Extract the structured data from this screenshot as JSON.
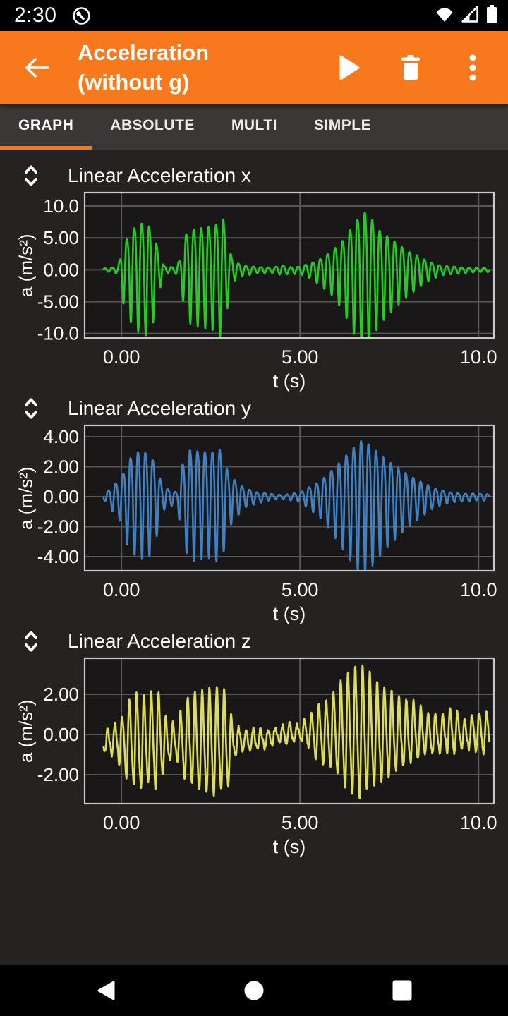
{
  "status_bar": {
    "time": "2:30"
  },
  "app_bar": {
    "title_line1": "Acceleration",
    "title_line2": "(without g)"
  },
  "tabs": {
    "items": [
      {
        "label": "GRAPH",
        "active": true
      },
      {
        "label": "ABSOLUTE",
        "active": false
      },
      {
        "label": "MULTI",
        "active": false
      },
      {
        "label": "SIMPLE",
        "active": false
      }
    ]
  },
  "colors": {
    "accent": "#F8791B",
    "plot_bg": "#191717",
    "grid": "#565656",
    "frame": "#C8C8C8",
    "text": "#FFFFFF"
  },
  "chart_data": [
    {
      "type": "line",
      "title": "Linear Acceleration x",
      "color": "#22CE22",
      "xlabel": "t (s)",
      "ylabel": "a (m/s²)",
      "xlim": [
        -1.03,
        10.43
      ],
      "ylim": [
        -10.7,
        12.1
      ],
      "x_ticks": [
        {
          "value": 0,
          "label": "0.00"
        },
        {
          "value": 5,
          "label": "5.00"
        },
        {
          "value": 10,
          "label": "10.0"
        }
      ],
      "y_ticks": [
        {
          "value": 10,
          "label": "10.0"
        },
        {
          "value": 5,
          "label": "5.00"
        },
        {
          "value": 0,
          "label": "0.00"
        },
        {
          "value": -5,
          "label": "-5.00"
        },
        {
          "value": -10,
          "label": "-10.0"
        }
      ],
      "grid": true,
      "legend": "none",
      "waveform": {
        "t_start": -0.5,
        "t_end": 10.3,
        "dt": 0.01,
        "freq": 4.8,
        "phase": 3.1416,
        "noise": 0.14,
        "seed": 3,
        "envelope": [
          [
            -0.5,
            0.2
          ],
          [
            -0.1,
            0.5
          ],
          [
            0.05,
            4.5
          ],
          [
            0.3,
            7.5
          ],
          [
            0.5,
            8.5
          ],
          [
            0.7,
            8.8
          ],
          [
            0.9,
            7.0
          ],
          [
            1.05,
            3.0
          ],
          [
            1.2,
            0.6
          ],
          [
            1.5,
            0.4
          ],
          [
            1.65,
            2.0
          ],
          [
            1.8,
            6.5
          ],
          [
            2.0,
            7.5
          ],
          [
            2.3,
            7.8
          ],
          [
            2.6,
            8.2
          ],
          [
            2.85,
            9.5
          ],
          [
            3.0,
            4.0
          ],
          [
            3.15,
            1.5
          ],
          [
            3.4,
            0.8
          ],
          [
            3.8,
            0.5
          ],
          [
            4.2,
            0.4
          ],
          [
            4.5,
            0.8
          ],
          [
            4.7,
            0.5
          ],
          [
            5.0,
            0.6
          ],
          [
            5.3,
            1.2
          ],
          [
            5.6,
            2.2
          ],
          [
            5.9,
            3.5
          ],
          [
            6.2,
            5.5
          ],
          [
            6.5,
            8.5
          ],
          [
            6.8,
            10.8
          ],
          [
            7.0,
            9.5
          ],
          [
            7.2,
            7.5
          ],
          [
            7.5,
            6.0
          ],
          [
            7.8,
            4.5
          ],
          [
            8.1,
            3.2
          ],
          [
            8.4,
            2.2
          ],
          [
            8.7,
            1.2
          ],
          [
            9.0,
            0.7
          ],
          [
            9.4,
            0.5
          ],
          [
            9.8,
            0.35
          ],
          [
            10.3,
            0.3
          ]
        ],
        "bias": [
          [
            -0.5,
            0
          ],
          [
            10.3,
            0
          ]
        ]
      }
    },
    {
      "type": "line",
      "title": "Linear Acceleration y",
      "color": "#3E82C6",
      "xlabel": "t (s)",
      "ylabel": "a (m/s²)",
      "xlim": [
        -1.03,
        10.43
      ],
      "ylim": [
        -4.94,
        4.75
      ],
      "x_ticks": [
        {
          "value": 0,
          "label": "0.00"
        },
        {
          "value": 5,
          "label": "5.00"
        },
        {
          "value": 10,
          "label": "10.0"
        }
      ],
      "y_ticks": [
        {
          "value": 4,
          "label": "4.00"
        },
        {
          "value": 2,
          "label": "2.00"
        },
        {
          "value": 0,
          "label": "0.00"
        },
        {
          "value": -2,
          "label": "-2.00"
        },
        {
          "value": -4,
          "label": "-4.00"
        }
      ],
      "grid": true,
      "legend": "none",
      "waveform": {
        "t_start": -0.5,
        "t_end": 10.3,
        "dt": 0.01,
        "freq": 4.8,
        "phase": 0.0,
        "noise": 0.08,
        "seed": 11,
        "envelope": [
          [
            -0.5,
            0.15
          ],
          [
            0.0,
            1.5
          ],
          [
            0.2,
            3.0
          ],
          [
            0.5,
            3.6
          ],
          [
            0.8,
            3.4
          ],
          [
            1.0,
            2.2
          ],
          [
            1.15,
            0.8
          ],
          [
            1.4,
            0.5
          ],
          [
            1.55,
            0.3
          ],
          [
            1.7,
            2.5
          ],
          [
            1.9,
            3.7
          ],
          [
            2.2,
            3.6
          ],
          [
            2.5,
            3.5
          ],
          [
            2.8,
            3.8
          ],
          [
            3.0,
            1.8
          ],
          [
            3.2,
            1.2
          ],
          [
            3.5,
            0.6
          ],
          [
            3.8,
            0.35
          ],
          [
            4.2,
            0.2
          ],
          [
            4.6,
            0.15
          ],
          [
            5.0,
            0.3
          ],
          [
            5.3,
            0.8
          ],
          [
            5.6,
            1.3
          ],
          [
            5.9,
            2.1
          ],
          [
            6.2,
            3.0
          ],
          [
            6.5,
            3.9
          ],
          [
            6.75,
            4.5
          ],
          [
            7.0,
            4.0
          ],
          [
            7.3,
            3.2
          ],
          [
            7.6,
            2.6
          ],
          [
            7.9,
            2.0
          ],
          [
            8.2,
            1.5
          ],
          [
            8.5,
            1.0
          ],
          [
            8.8,
            0.6
          ],
          [
            9.2,
            0.35
          ],
          [
            9.6,
            0.25
          ],
          [
            10.3,
            0.2
          ]
        ],
        "bias": [
          [
            -0.5,
            0
          ],
          [
            10.3,
            0
          ]
        ]
      }
    },
    {
      "type": "line",
      "title": "Linear Acceleration z",
      "color": "#DEDE55",
      "xlabel": "t (s)",
      "ylabel": "a (m/s²)",
      "xlim": [
        -1.03,
        10.43
      ],
      "ylim": [
        -3.44,
        3.79
      ],
      "x_ticks": [
        {
          "value": 0,
          "label": "0.00"
        },
        {
          "value": 5,
          "label": "5.00"
        },
        {
          "value": 10,
          "label": "10.0"
        }
      ],
      "y_ticks": [
        {
          "value": 2,
          "label": "2.00"
        },
        {
          "value": 0,
          "label": "0.00"
        },
        {
          "value": -2,
          "label": "-2.00"
        }
      ],
      "grid": true,
      "legend": "none",
      "waveform": {
        "t_start": -0.5,
        "t_end": 10.3,
        "dt": 0.01,
        "freq": 4.9,
        "phase": 0.8,
        "noise": 0.42,
        "seed": 42,
        "envelope": [
          [
            -0.5,
            0.3
          ],
          [
            0.0,
            1.2
          ],
          [
            0.2,
            2.0
          ],
          [
            0.5,
            2.3
          ],
          [
            0.8,
            2.1
          ],
          [
            1.0,
            2.4
          ],
          [
            1.2,
            1.4
          ],
          [
            1.4,
            0.8
          ],
          [
            1.6,
            1.0
          ],
          [
            1.8,
            2.0
          ],
          [
            2.1,
            2.3
          ],
          [
            2.4,
            2.5
          ],
          [
            2.7,
            2.6
          ],
          [
            2.95,
            2.3
          ],
          [
            3.1,
            1.0
          ],
          [
            3.3,
            0.6
          ],
          [
            3.7,
            0.5
          ],
          [
            4.1,
            0.4
          ],
          [
            4.4,
            0.35
          ],
          [
            4.6,
            0.5
          ],
          [
            4.9,
            0.4
          ],
          [
            5.2,
            0.7
          ],
          [
            5.5,
            1.3
          ],
          [
            5.8,
            1.7
          ],
          [
            6.1,
            2.2
          ],
          [
            6.4,
            2.9
          ],
          [
            6.65,
            3.2
          ],
          [
            6.9,
            2.8
          ],
          [
            7.2,
            2.3
          ],
          [
            7.5,
            2.1
          ],
          [
            7.8,
            1.6
          ],
          [
            8.1,
            1.5
          ],
          [
            8.4,
            1.1
          ],
          [
            8.7,
            0.9
          ],
          [
            9.0,
            0.8
          ],
          [
            9.3,
            1.1
          ],
          [
            9.6,
            0.7
          ],
          [
            9.9,
            0.8
          ],
          [
            10.2,
            1.0
          ]
        ],
        "bias": [
          [
            -0.5,
            -0.35
          ],
          [
            3.0,
            -0.4
          ],
          [
            4.3,
            -0.15
          ],
          [
            4.6,
            0.05
          ],
          [
            10.3,
            0.05
          ]
        ]
      }
    }
  ]
}
